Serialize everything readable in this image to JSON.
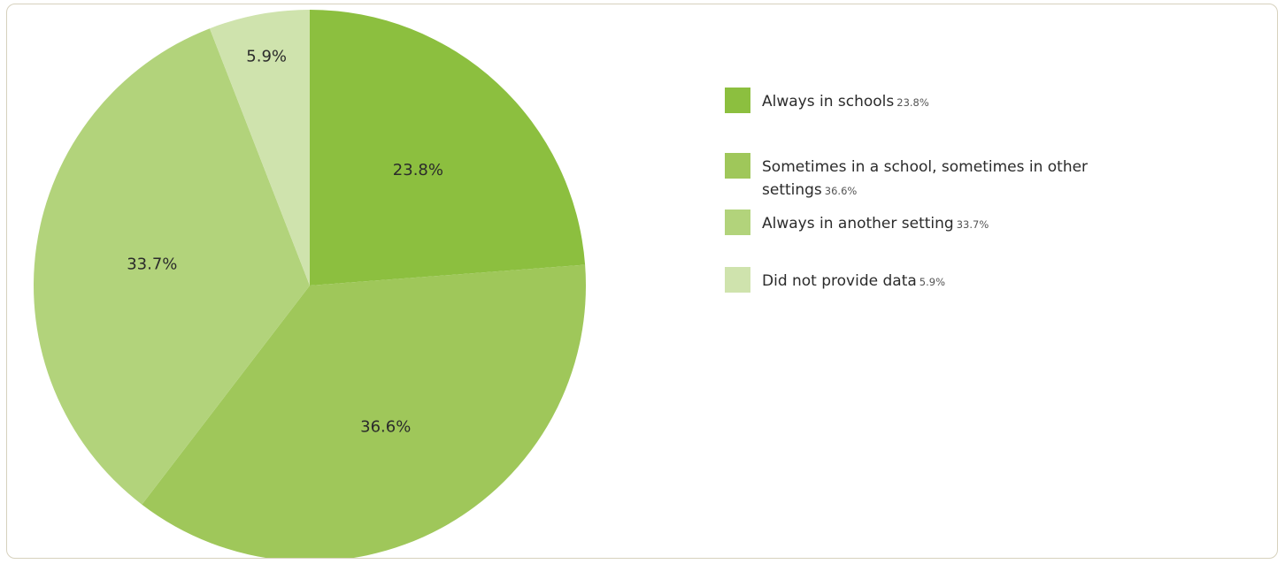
{
  "chart_data": {
    "type": "pie",
    "title": "",
    "start_angle_deg": 0,
    "direction": "clockwise",
    "slices": [
      {
        "label": "Always in schools",
        "value": 23.8,
        "value_label": "23.8%",
        "color": "#8cbf3f"
      },
      {
        "label": "Sometimes in a school, sometimes in other settings",
        "value": 36.6,
        "value_label": "36.6%",
        "color": "#9fc75a"
      },
      {
        "label": "Always in another setting",
        "value": 33.7,
        "value_label": "33.7%",
        "color": "#b2d37b"
      },
      {
        "label": "Did not provide data",
        "value": 5.9,
        "value_label": "5.9%",
        "color": "#cfe3ad"
      }
    ],
    "legend_position": "right"
  },
  "legend": {
    "items": [
      {
        "label": "Always in schools",
        "value": "23.8%"
      },
      {
        "label": "Sometimes in a school, sometimes in other settings",
        "value": "36.6%"
      },
      {
        "label": "Always in another setting",
        "value": "33.7%"
      },
      {
        "label": "Did not provide data",
        "value": "5.9%"
      }
    ]
  }
}
